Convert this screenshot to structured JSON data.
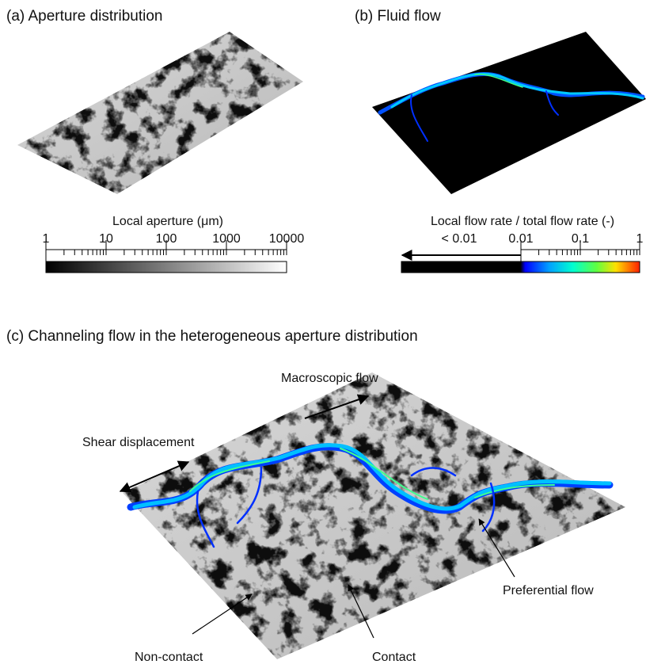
{
  "panels": [
    {
      "title": "(a) Aperture distribution",
      "colorbar": {
        "label": "Local aperture (μm)",
        "ticks": [
          "1",
          "10",
          "100",
          "1000",
          "10000"
        ]
      }
    },
    {
      "title": "(b) Fluid flow",
      "colorbar": {
        "label": "Local flow rate / total flow rate (-)",
        "ticks": [
          "< 0.01",
          "0.01",
          "0.1",
          "1"
        ]
      }
    },
    {
      "title": "(c) Channeling flow in the heterogeneous aperture distribution",
      "annotations": [
        "Macroscopic flow",
        "Shear displacement",
        "Preferential flow",
        "Non-contact",
        "Contact"
      ]
    }
  ]
}
